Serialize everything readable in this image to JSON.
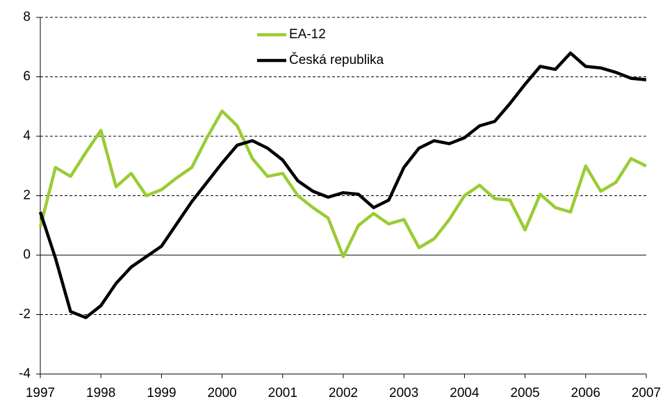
{
  "chart_data": {
    "type": "line",
    "x": [
      1997,
      1997.25,
      1997.5,
      1997.75,
      1998,
      1998.25,
      1998.5,
      1998.75,
      1999,
      1999.25,
      1999.5,
      1999.75,
      2000,
      2000.25,
      2000.5,
      2000.75,
      2001,
      2001.25,
      2001.5,
      2001.75,
      2002,
      2002.25,
      2002.5,
      2002.75,
      2003,
      2003.25,
      2003.5,
      2003.75,
      2004,
      2004.25,
      2004.5,
      2004.75,
      2005,
      2005.25,
      2005.5,
      2005.75,
      2006,
      2006.25,
      2006.5,
      2006.75,
      2007
    ],
    "series": [
      {
        "name": "EA-12",
        "color": "#99cc33",
        "values": [
          0.95,
          2.95,
          2.65,
          3.45,
          4.2,
          2.3,
          2.75,
          2.0,
          2.2,
          2.6,
          2.95,
          3.95,
          4.85,
          4.35,
          3.25,
          2.65,
          2.75,
          2.0,
          1.6,
          1.25,
          -0.05,
          1.0,
          1.4,
          1.05,
          1.2,
          0.25,
          0.55,
          1.2,
          2.0,
          2.35,
          1.9,
          1.85,
          0.85,
          2.05,
          1.6,
          1.45,
          3.0,
          2.15,
          2.45,
          3.25,
          3.0
        ]
      },
      {
        "name": "Česká republika",
        "color": "#000000",
        "values": [
          1.45,
          -0.1,
          -1.9,
          -2.1,
          -1.7,
          -0.95,
          -0.4,
          -0.05,
          0.3,
          1.05,
          1.8,
          2.45,
          3.1,
          3.7,
          3.85,
          3.6,
          3.2,
          2.5,
          2.15,
          1.95,
          2.1,
          2.05,
          1.6,
          1.85,
          2.95,
          3.6,
          3.85,
          3.75,
          3.95,
          4.35,
          4.5,
          5.1,
          5.75,
          6.35,
          6.25,
          6.8,
          6.35,
          6.3,
          6.15,
          5.95,
          5.9
        ]
      }
    ],
    "xlim": [
      1997,
      2007
    ],
    "xticks": [
      1997,
      1998,
      1999,
      2000,
      2001,
      2002,
      2003,
      2004,
      2005,
      2006,
      2007
    ],
    "ylim": [
      -4,
      8
    ],
    "yticks": [
      -4,
      -2,
      0,
      2,
      4,
      6,
      8
    ],
    "grid": true
  }
}
